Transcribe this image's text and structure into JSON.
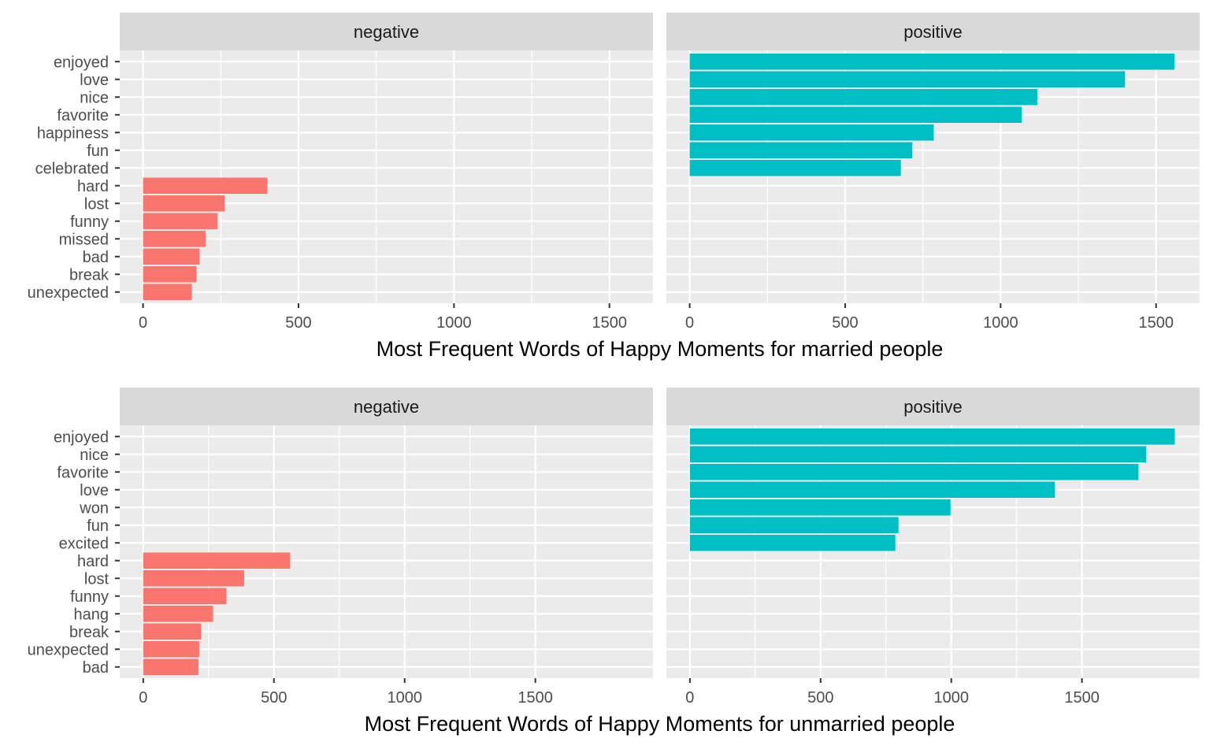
{
  "chart_data": [
    {
      "type": "bar",
      "title": "Most Frequent Words of Happy Moments for married people",
      "categories": [
        "enjoyed",
        "love",
        "nice",
        "favorite",
        "happiness",
        "fun",
        "celebrated",
        "hard",
        "lost",
        "funny",
        "missed",
        "bad",
        "break",
        "unexpected"
      ],
      "xlim": [
        -75,
        1640
      ],
      "xticks": [
        0,
        500,
        1000,
        1500
      ],
      "facets": [
        {
          "label": "negative",
          "color": "#F8766D",
          "values": [
            null,
            null,
            null,
            null,
            null,
            null,
            null,
            400,
            262,
            240,
            201,
            182,
            172,
            157
          ]
        },
        {
          "label": "positive",
          "color": "#00BFC4",
          "values": [
            1559,
            1400,
            1118,
            1068,
            785,
            716,
            679,
            null,
            null,
            null,
            null,
            null,
            null,
            null
          ]
        }
      ]
    },
    {
      "type": "bar",
      "title": "Most Frequent Words of Happy Moments for unmarried people",
      "categories": [
        "enjoyed",
        "nice",
        "favorite",
        "love",
        "won",
        "fun",
        "excited",
        "hard",
        "lost",
        "funny",
        "hang",
        "break",
        "unexpected",
        "bad"
      ],
      "xlim": [
        -90,
        1950
      ],
      "xticks": [
        0,
        500,
        1000,
        1500
      ],
      "facets": [
        {
          "label": "negative",
          "color": "#F8766D",
          "values": [
            null,
            null,
            null,
            null,
            null,
            null,
            null,
            562,
            386,
            318,
            267,
            221,
            214,
            211
          ]
        },
        {
          "label": "positive",
          "color": "#00BFC4",
          "values": [
            1855,
            1746,
            1716,
            1396,
            997,
            798,
            786,
            null,
            null,
            null,
            null,
            null,
            null,
            null
          ]
        }
      ]
    }
  ]
}
